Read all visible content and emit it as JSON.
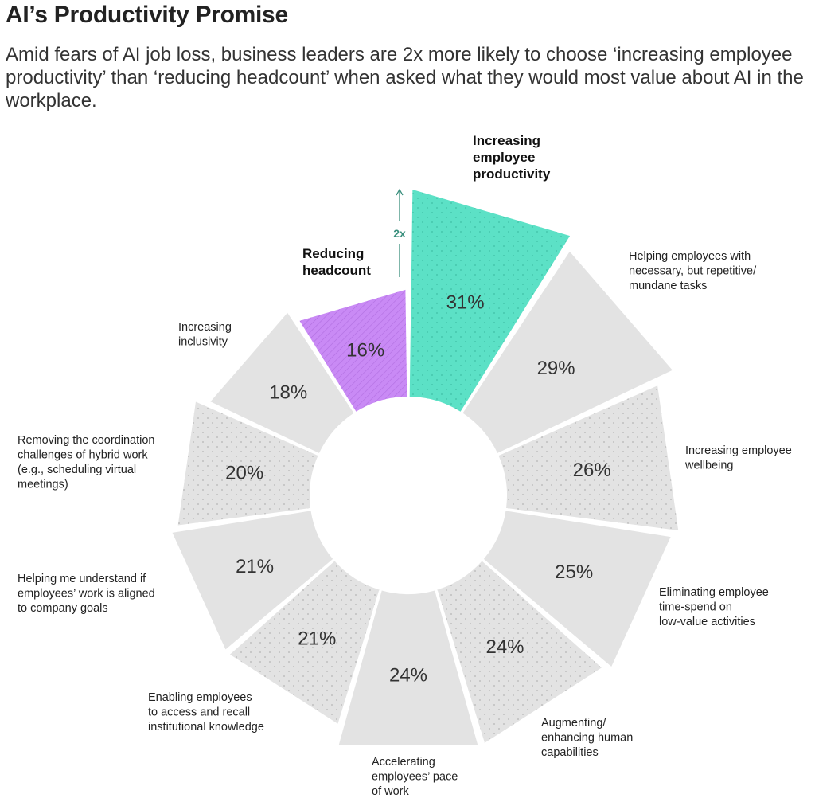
{
  "header": {
    "title": "AI’s Productivity Promise",
    "subtitle": "Amid fears of AI job loss, business leaders are 2x more likely to choose ‘increasing employee productivity’ than ‘reducing headcount’ when asked what they would most value about AI in the workplace."
  },
  "chart_data": {
    "type": "radial-bar",
    "unit": "%",
    "annotation": "2x",
    "slices": [
      {
        "label": [
          "Increasing",
          "employee",
          "productivity"
        ],
        "value": 31,
        "display": "31%",
        "style": "highlight-teal"
      },
      {
        "label": [
          "Helping employees with",
          "necessary, but repetitive/",
          "mundane tasks"
        ],
        "value": 29,
        "display": "29%",
        "style": "gray"
      },
      {
        "label": [
          "Increasing employee",
          "wellbeing"
        ],
        "value": 26,
        "display": "26%",
        "style": "gray-dotted"
      },
      {
        "label": [
          "Eliminating employee",
          "time-spend on",
          "low-value activities"
        ],
        "value": 25,
        "display": "25%",
        "style": "gray"
      },
      {
        "label": [
          "Augmenting/",
          "enhancing human",
          "capabilities"
        ],
        "value": 24,
        "display": "24%",
        "style": "gray-dotted"
      },
      {
        "label": [
          "Accelerating",
          "employees’ pace",
          "of work"
        ],
        "value": 24,
        "display": "24%",
        "style": "gray"
      },
      {
        "label": [
          "Enabling employees",
          "to access and recall",
          "institutional knowledge"
        ],
        "value": 21,
        "display": "21%",
        "style": "gray-dotted"
      },
      {
        "label": [
          "Helping me understand if",
          "employees’ work is aligned",
          "to company goals"
        ],
        "value": 21,
        "display": "21%",
        "style": "gray"
      },
      {
        "label": [
          "Removing the coordination",
          "challenges of hybrid work",
          "(e.g., scheduling virtual",
          "meetings)"
        ],
        "value": 20,
        "display": "20%",
        "style": "gray-dotted"
      },
      {
        "label": [
          "Increasing",
          "inclusivity"
        ],
        "value": 18,
        "display": "18%",
        "style": "gray"
      },
      {
        "label": [
          "Reducing",
          "headcount"
        ],
        "value": 16,
        "display": "16%",
        "style": "highlight-purple"
      }
    ],
    "colors": {
      "teal": "#5ce1c6",
      "purple": "#c98af5",
      "gray": "#e3e3e3",
      "arrow": "#3a8f7d"
    }
  }
}
